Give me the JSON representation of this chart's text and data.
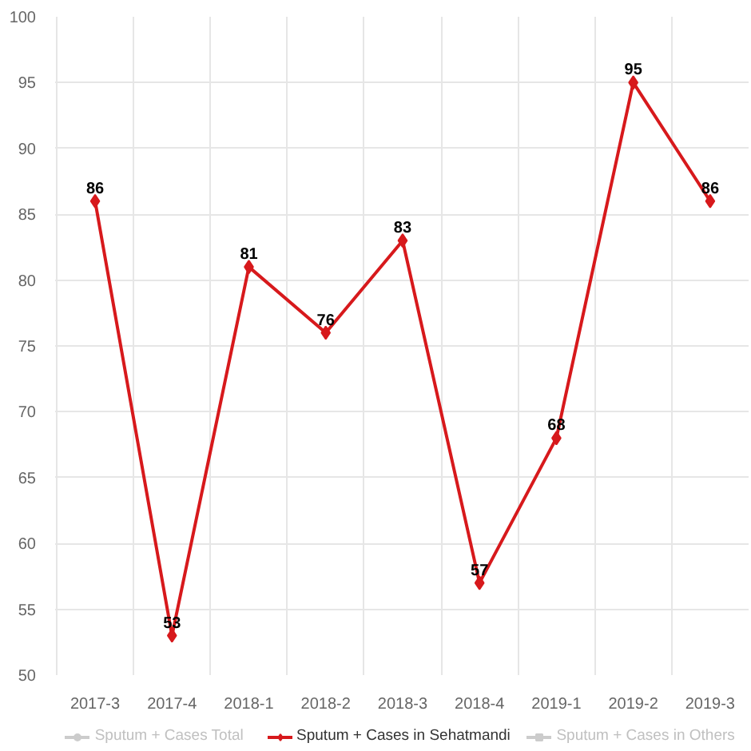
{
  "chart_data": {
    "type": "line",
    "categories": [
      "2017-3",
      "2017-4",
      "2018-1",
      "2018-2",
      "2018-3",
      "2018-4",
      "2019-1",
      "2019-2",
      "2019-3"
    ],
    "series": [
      {
        "name": "Sputum + Cases Total",
        "color": "#cccccc",
        "marker": "circle",
        "values": [
          null,
          null,
          null,
          null,
          null,
          null,
          null,
          null,
          null
        ]
      },
      {
        "name": "Sputum + Cases in Sehatmandi",
        "color": "#d7191c",
        "marker": "diamond",
        "values": [
          86,
          53,
          81,
          76,
          83,
          57,
          68,
          95,
          86
        ]
      },
      {
        "name": "Sputum + Cases in Others",
        "color": "#cccccc",
        "marker": "square",
        "values": [
          null,
          null,
          null,
          null,
          null,
          null,
          null,
          null,
          null
        ]
      }
    ],
    "ylim": [
      50,
      100
    ],
    "yticks": [
      50,
      55,
      60,
      65,
      70,
      75,
      80,
      85,
      90,
      95,
      100
    ],
    "grid": true,
    "legend": "bottom",
    "data_labels": true,
    "line_style": "solid"
  }
}
